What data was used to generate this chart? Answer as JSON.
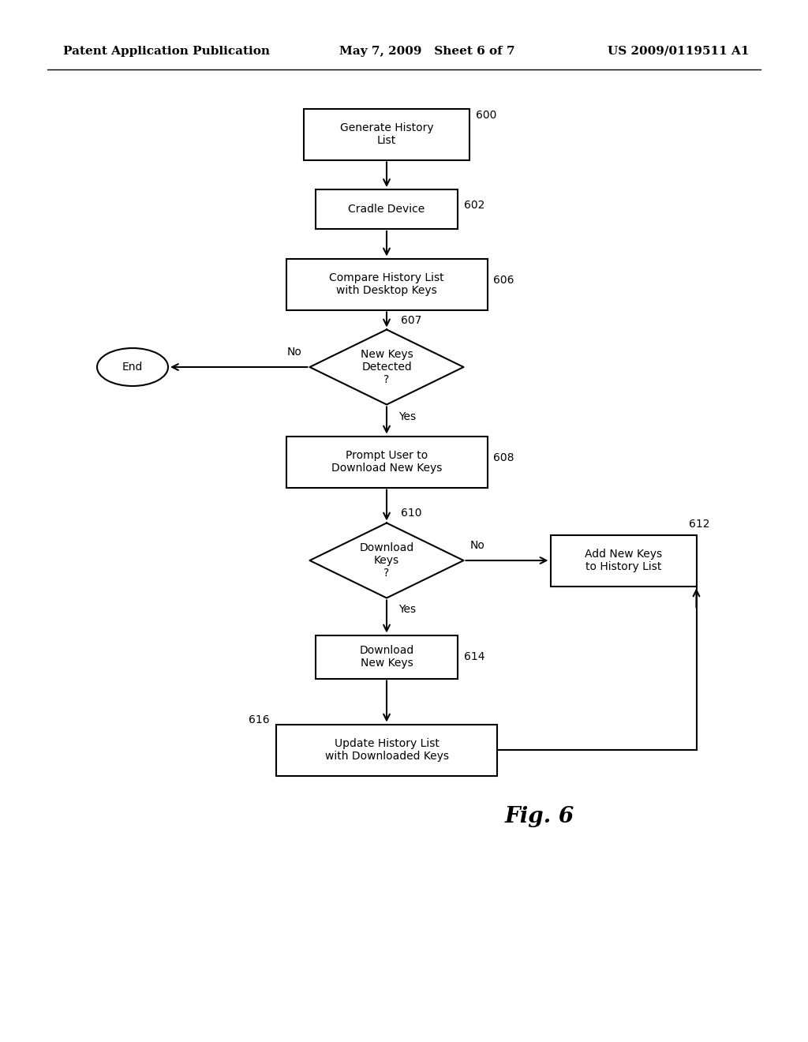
{
  "bg_color": "#ffffff",
  "header_left": "Patent Application Publication",
  "header_mid": "May 7, 2009   Sheet 6 of 7",
  "header_right": "US 2009/0119511 A1",
  "fig_label": "Fig. 6"
}
